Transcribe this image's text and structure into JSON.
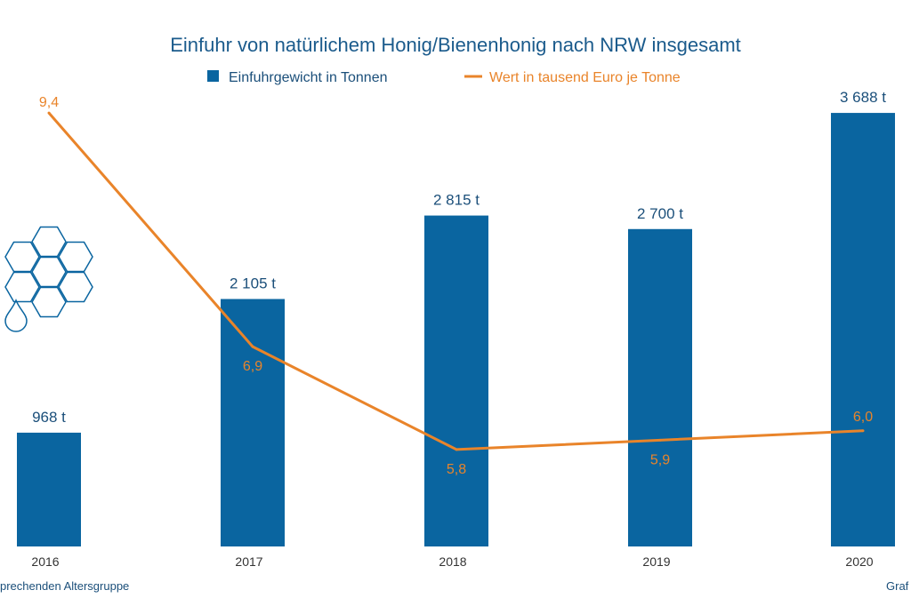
{
  "chart_data": {
    "type": "bar",
    "title": "Einfuhr von natürlichem Honig/Bienenhonig nach NRW insgesamt",
    "categories": [
      "2016",
      "2017",
      "2018",
      "2019",
      "2020"
    ],
    "series": [
      {
        "name": "Einfuhrgewicht in Tonnen",
        "type": "bar",
        "values": [
          968,
          2105,
          2815,
          2700,
          3688
        ],
        "labels": [
          "968 t",
          "2 105 t",
          "2 815 t",
          "2 700 t",
          "3 688 t"
        ],
        "color": "#0a65a0"
      },
      {
        "name": "Wert in tausend Euro je Tonne",
        "type": "line",
        "values": [
          9.4,
          6.9,
          5.8,
          5.9,
          6.0
        ],
        "labels": [
          "9,4",
          "6,9",
          "5,8",
          "5,9",
          "6,0"
        ],
        "color": "#e9842a"
      }
    ],
    "legend_position": "top-center",
    "grid": false
  },
  "footer": {
    "left_text": "prechenden Altersgruppe",
    "right_text": "Graf"
  },
  "icon": "honeycomb-drop-icon",
  "colors": {
    "title": "#1b5b8c",
    "bar": "#0a65a0",
    "line": "#e9842a"
  }
}
